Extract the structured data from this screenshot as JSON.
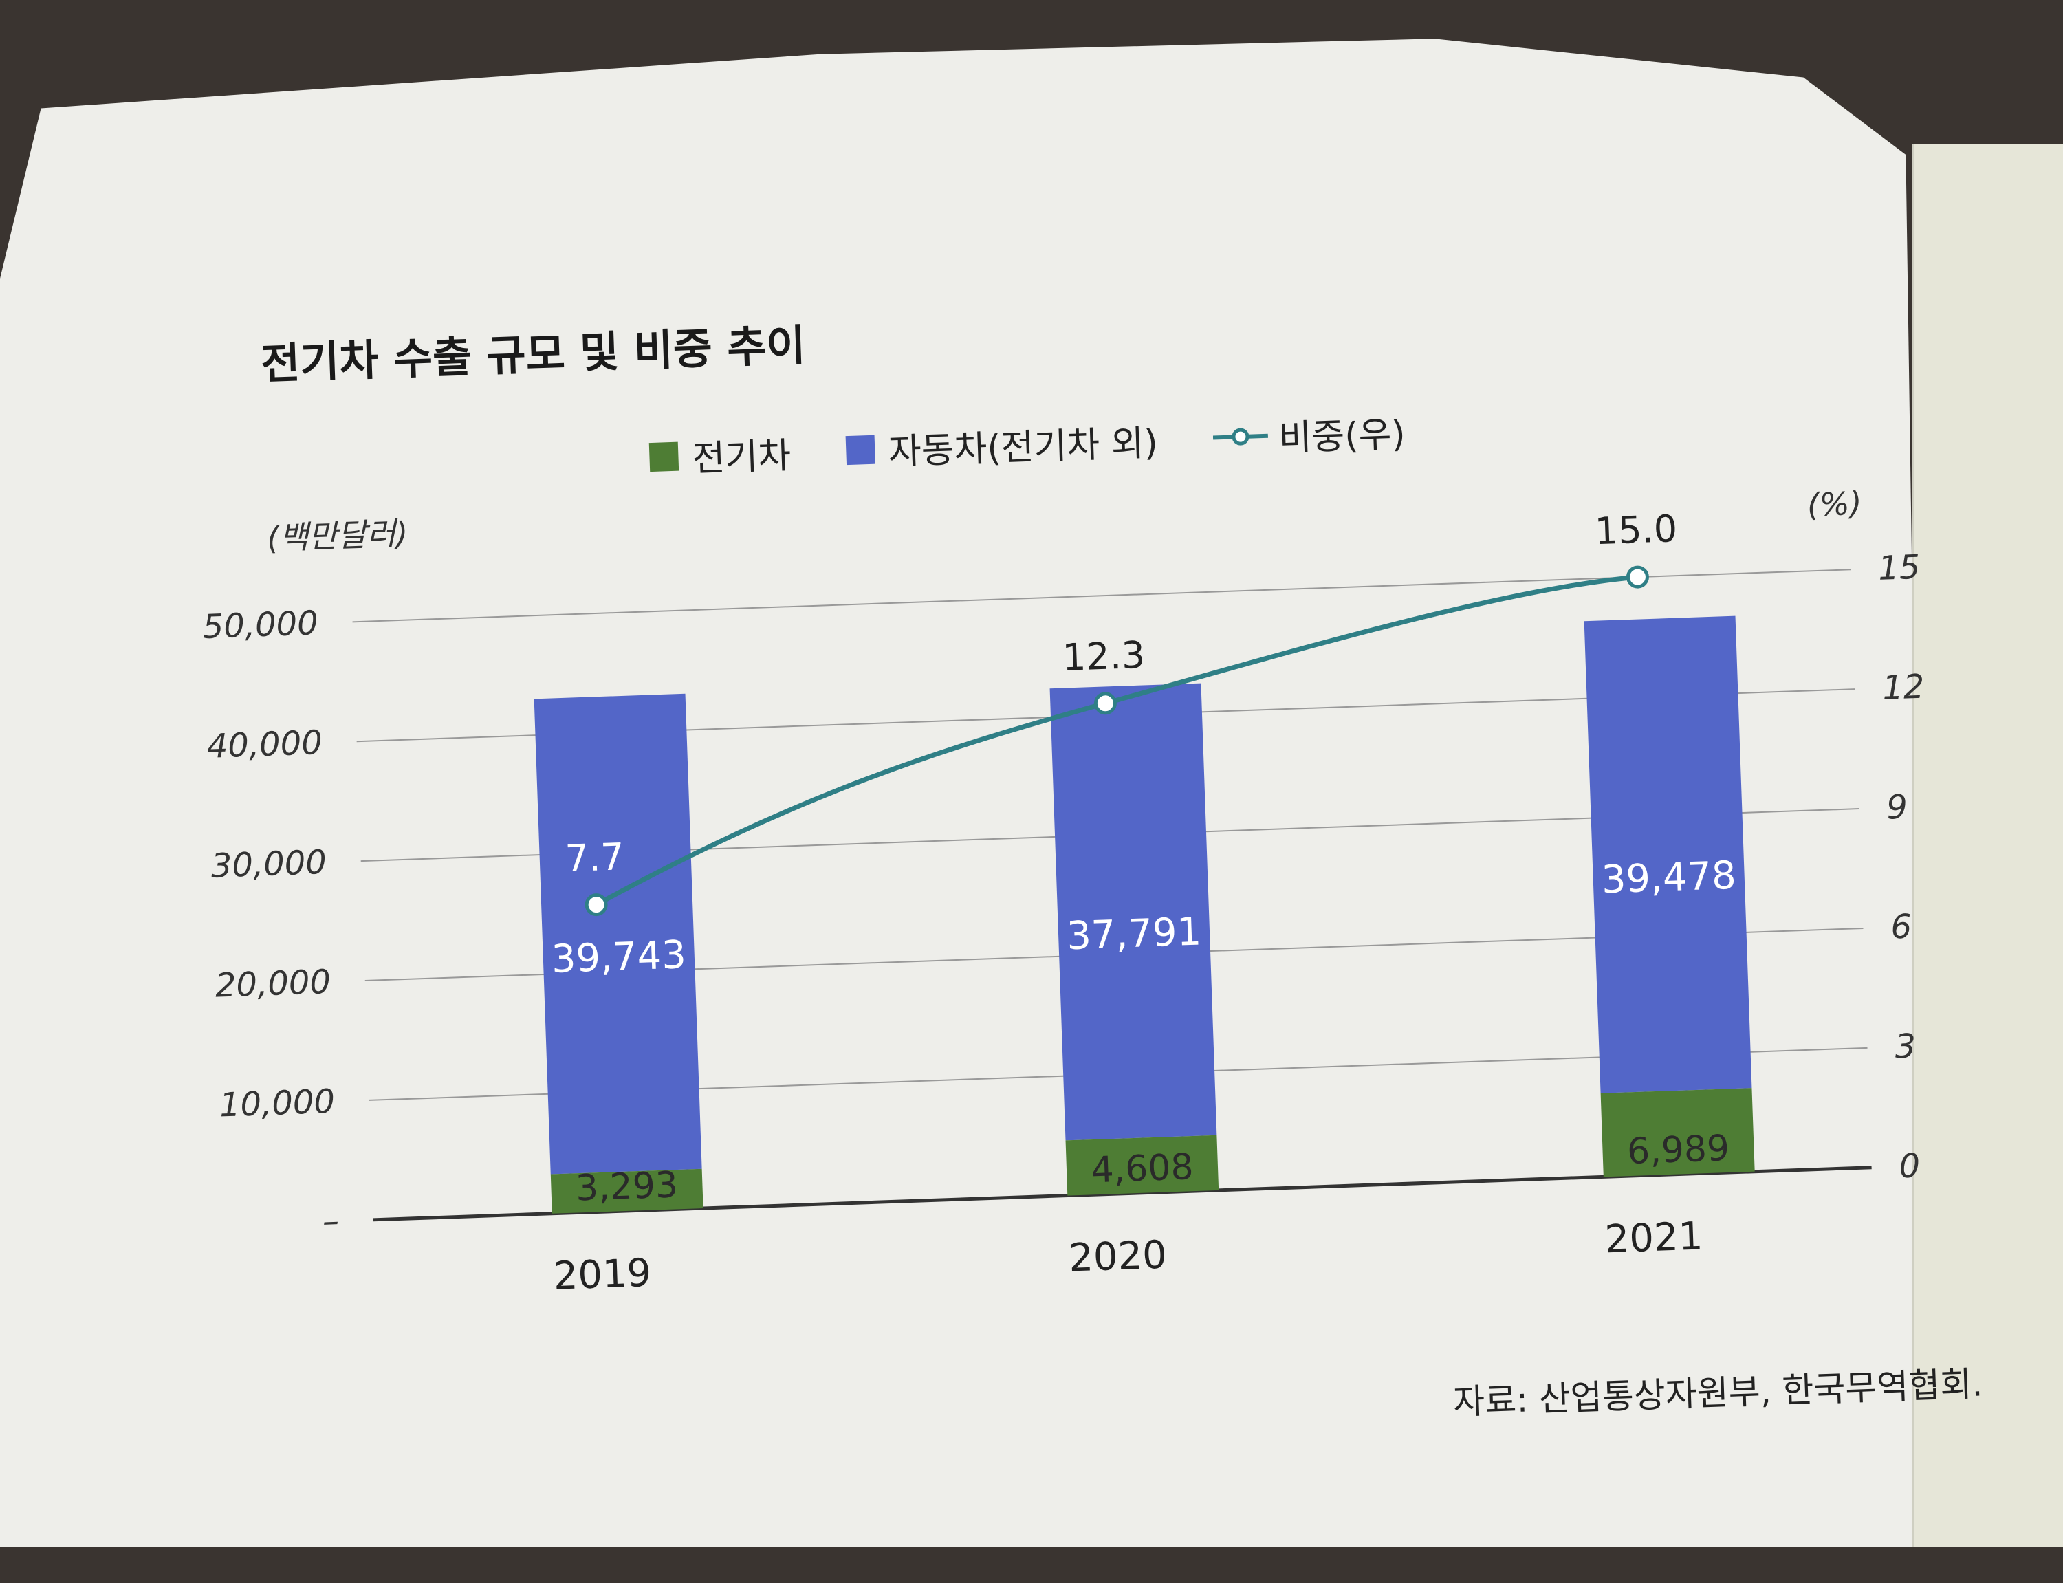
{
  "chart_data": {
    "type": "bar",
    "title": "전기차 수출 규모 및 비중 추이",
    "categories": [
      "2019",
      "2020",
      "2021"
    ],
    "series": [
      {
        "name": "전기차",
        "values": [
          3293,
          4608,
          6989
        ],
        "labels": [
          "3,293",
          "4,608",
          "6,989"
        ],
        "color": "#4e7d34"
      },
      {
        "name": "자동차(전기차 외)",
        "values": [
          39743,
          37791,
          39478
        ],
        "labels": [
          "39,743",
          "37,791",
          "39,478"
        ],
        "color": "#5366c8"
      },
      {
        "name": "비중(우)",
        "type": "line",
        "axis": "right",
        "values": [
          7.7,
          12.3,
          15.0
        ],
        "labels": [
          "7.7",
          "12.3",
          "15.0"
        ],
        "color": "#2f7f86"
      }
    ],
    "ylabel_left": "(백만달러)",
    "ylabel_right": "(%)",
    "ylim_left": [
      0,
      50000
    ],
    "ylim_right": [
      0,
      15
    ],
    "yticks_left": [
      "–",
      "10,000",
      "20,000",
      "30,000",
      "40,000",
      "50,000"
    ],
    "yticks_right": [
      "0",
      "3",
      "6",
      "9",
      "12",
      "15"
    ],
    "grid": true,
    "legend_position": "top-center"
  },
  "legend": {
    "ev": "전기차",
    "car": "자동차(전기차 외)",
    "share": "비중(우)"
  },
  "source": "자료: 산업통상자원부, 한국무역협회."
}
